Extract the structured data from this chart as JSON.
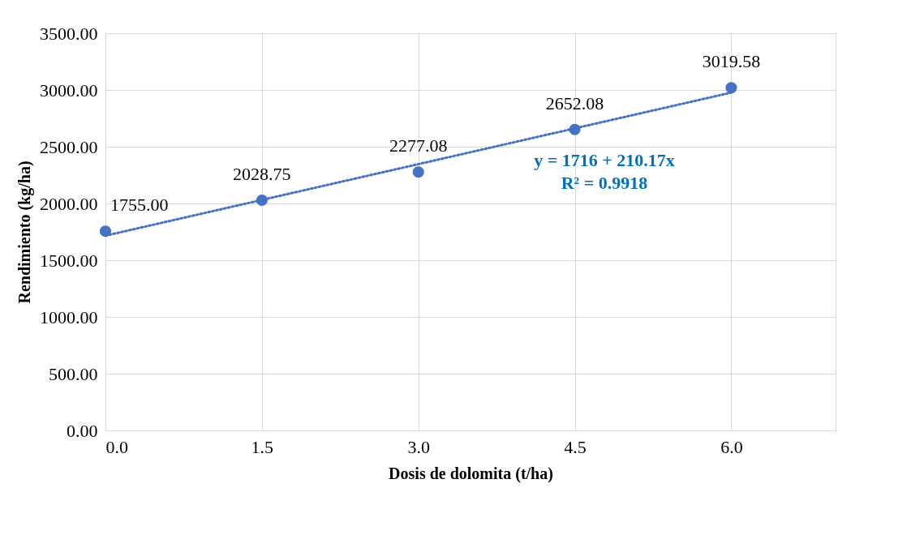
{
  "chart_data": {
    "type": "scatter",
    "xlabel": "Dosis de dolomita (t/ha)",
    "ylabel": "Rendimiento (kg/ha)",
    "x": [
      0,
      1.5,
      3,
      4.5,
      6
    ],
    "series": [
      {
        "color": "#4472c4",
        "marker": "circle",
        "values": [
          1755.0,
          2028.75,
          2277.08,
          2652.08,
          3019.58
        ],
        "value_labels": [
          "1755.00",
          "2028.75",
          "2277.08",
          "2652.08",
          "3019.58"
        ]
      },
      {
        "type": "line",
        "color": "#4472c4",
        "line_style": "dotted",
        "marker": "none",
        "x": [
          0,
          6
        ],
        "values": [
          1716,
          2977
        ]
      }
    ],
    "annotations": [
      "y = 1716 + 210.17x",
      "R² = 0.9918"
    ],
    "xlim": [
      0,
      7
    ],
    "xticks": [
      {
        "value": 0,
        "label": "0.0"
      },
      {
        "value": 1.5,
        "label": "1.5"
      },
      {
        "value": 3,
        "label": "3.0"
      },
      {
        "value": 4.5,
        "label": "4.5"
      },
      {
        "value": 6,
        "label": "6.0"
      }
    ],
    "ylim": [
      0,
      3500
    ],
    "yticks": [
      {
        "value": 0,
        "label": "0.00"
      },
      {
        "value": 500,
        "label": "500.00"
      },
      {
        "value": 1000,
        "label": "1000.00"
      },
      {
        "value": 1500,
        "label": "1500.00"
      },
      {
        "value": 2000,
        "label": "2000.00"
      },
      {
        "value": 2500,
        "label": "2500.00"
      },
      {
        "value": 3000,
        "label": "3000.00"
      },
      {
        "value": 3500,
        "label": "3500.00"
      }
    ],
    "grid": true
  }
}
